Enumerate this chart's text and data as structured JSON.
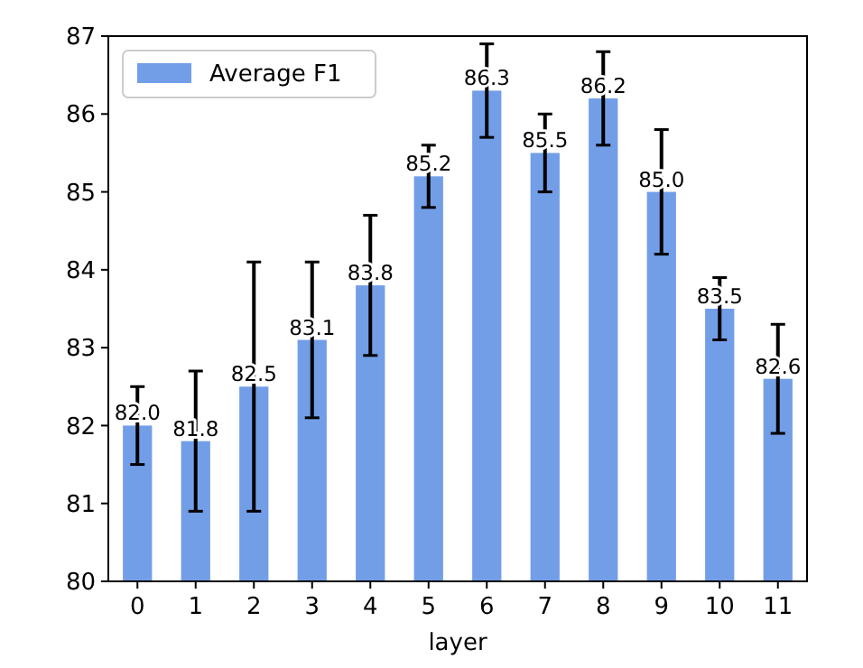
{
  "chart_data": {
    "type": "bar",
    "xlabel": "layer",
    "categories": [
      "0",
      "1",
      "2",
      "3",
      "4",
      "5",
      "6",
      "7",
      "8",
      "9",
      "10",
      "11"
    ],
    "series": [
      {
        "name": "Average F1",
        "color": "#729ee8",
        "values": [
          82.0,
          81.8,
          82.5,
          83.1,
          83.8,
          85.2,
          86.3,
          85.5,
          86.2,
          85.0,
          83.5,
          82.6
        ],
        "value_labels": [
          "82.0",
          "81.8",
          "82.5",
          "83.1",
          "83.8",
          "85.2",
          "86.3",
          "85.5",
          "86.2",
          "85.0",
          "83.5",
          "82.6"
        ],
        "errors": [
          [
            81.5,
            82.5
          ],
          [
            80.9,
            82.7
          ],
          [
            80.9,
            84.1
          ],
          [
            82.1,
            84.1
          ],
          [
            82.9,
            84.7
          ],
          [
            84.8,
            85.6
          ],
          [
            85.7,
            86.9
          ],
          [
            85.0,
            86.0
          ],
          [
            85.6,
            86.8
          ],
          [
            84.2,
            85.8
          ],
          [
            83.1,
            83.9
          ],
          [
            81.9,
            83.3
          ]
        ]
      }
    ],
    "ylim": [
      80,
      87
    ],
    "yticks": [
      80,
      81,
      82,
      83,
      84,
      85,
      86,
      87
    ],
    "grid": false,
    "legend": "top left"
  }
}
